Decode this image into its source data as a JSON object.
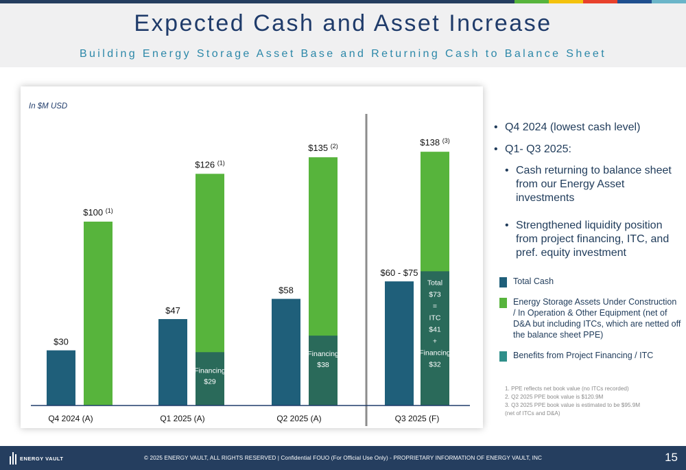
{
  "colors": {
    "cash": "#1f5f7a",
    "assets": "#57b43c",
    "financing": "#2a6a5a",
    "title": "#1f3b6a",
    "subtitle": "#2b87a8",
    "divider": "#8c8c8c",
    "legend_benefits": "#2f8f8a"
  },
  "top_bar": [
    "#253e5f",
    "#57b43c",
    "#f4c20d",
    "#e8412c",
    "#1f4f8f",
    "#6bb5c9"
  ],
  "header": {
    "title": "Expected Cash and Asset Increase",
    "subtitle": "Building Energy Storage Asset Base and Returning Cash to Balance Sheet"
  },
  "chart_data": {
    "type": "bar",
    "unit_note": "In $M USD",
    "categories": [
      "Q4 2024 (A)",
      "Q1 2025 (A)",
      "Q2 2025 (A)",
      "Q3 2025 (F)"
    ],
    "ylim": [
      0,
      145
    ],
    "series": [
      {
        "name": "Total Cash",
        "values": [
          30,
          47,
          58,
          67.5
        ],
        "labels": [
          "$30",
          "$47",
          "$58",
          "$60 - $75"
        ]
      },
      {
        "name": "Energy Storage Assets Under Construction / In Operation & Other Equipment (net of D&A but including ITCs, which are netted off the balance sheet PPE)",
        "values": [
          100,
          126,
          135,
          138
        ],
        "labels": [
          "$100",
          "$126",
          "$135",
          "$138"
        ],
        "footnote_refs": [
          "(1)",
          "(1)",
          "(2)",
          "(3)"
        ]
      },
      {
        "name": "Benefits from Project Financing / ITC",
        "values": [
          0,
          29,
          38,
          73
        ],
        "labels": [
          "",
          "Financing\n$29",
          "Financing\n$38",
          "Total\n$73\n=\nITC\n$41\n+\nFinancing\n$32"
        ]
      }
    ]
  },
  "bullets": {
    "item1": "Q4 2024 (lowest cash level)",
    "item2": "Q1- Q3 2025:",
    "sub1": "Cash returning to balance sheet from our Energy Asset investments",
    "sub2": "Strengthened liquidity position from project financing, ITC, and pref. equity investment"
  },
  "legend": {
    "cash": "Total Cash",
    "assets": "Energy Storage Assets Under Construction / In Operation & Other Equipment (net of D&A but including ITCs, which are netted off the balance sheet PPE)",
    "benefits": "Benefits from Project Financing / ITC"
  },
  "footnotes": [
    "1. PPE reflects net book value (no ITCs recorded)",
    "2. Q2 2025 PPE book value is $120.9M",
    "3. Q3 2025 PPE book value is estimated to be $95.9M",
    "(net of ITCs and D&A)"
  ],
  "footer": {
    "logo": "ENERGY VAULT",
    "text": "© 2025 ENERGY VAULT, ALL RIGHTS RESERVED  |  Confidential FOUO (For Official Use Only) - PROPRIETARY INFORMATION OF ENERGY VAULT, INC",
    "page": "15"
  }
}
